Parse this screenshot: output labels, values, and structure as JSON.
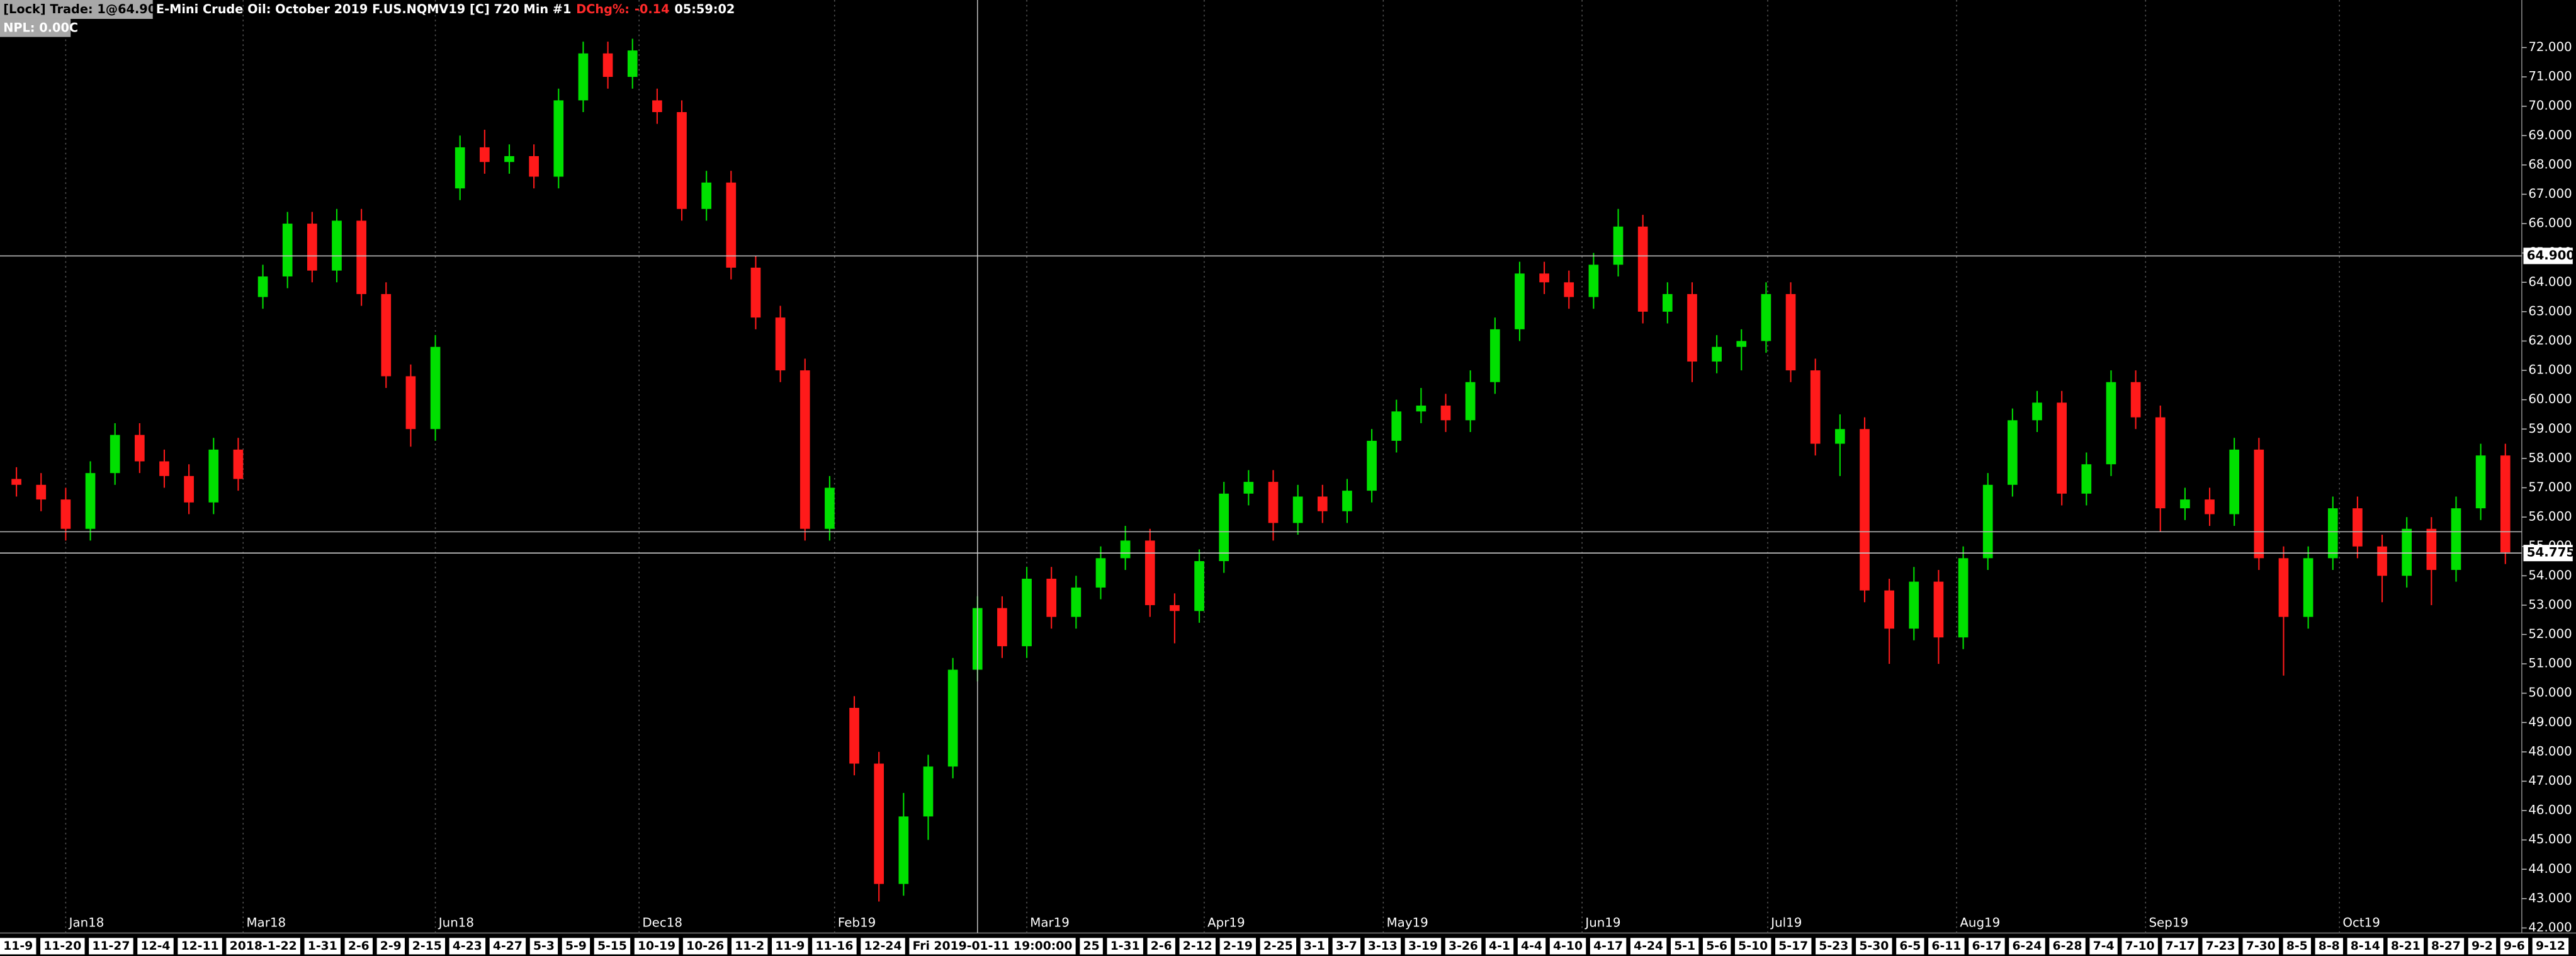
{
  "chart_data": {
    "type": "candlestick",
    "header": {
      "lock": "[Lock] Trade: 1@64.900",
      "instrument": "E-Mini Crude Oil: October 2019 F.US.NQMV19 [C]  720 Min   #1",
      "dchg_label": "DChg%:",
      "dchg_value": "-0.14",
      "time": "05:59:02",
      "npl": "NPL: 0.00C"
    },
    "up_color": "#00e000",
    "down_color": "#ff1a1a",
    "open": [
      57.3,
      57.1,
      56.6,
      55.6,
      57.5,
      58.8,
      57.9,
      57.4,
      56.5,
      58.3,
      63.5,
      64.2,
      66.0,
      64.4,
      66.1,
      63.6,
      60.8,
      59.0,
      67.2,
      68.6,
      68.1,
      68.3,
      67.6,
      70.2,
      71.8,
      71.0,
      70.2,
      69.8,
      66.5,
      67.4,
      64.5,
      62.8,
      61.0,
      55.6,
      49.5,
      47.6,
      43.5,
      45.8,
      47.5,
      50.8,
      52.9,
      51.6,
      53.9,
      52.6,
      53.6,
      54.6,
      55.2,
      53.0,
      52.8,
      54.5,
      56.8,
      57.2,
      55.8,
      56.7,
      56.2,
      56.9,
      58.6,
      59.6,
      59.8,
      59.3,
      60.6,
      62.4,
      64.3,
      64.0,
      63.5,
      64.6,
      65.9,
      63.0,
      63.6,
      61.3,
      61.8,
      62.0,
      63.6,
      61.0,
      58.5,
      59.0,
      53.5,
      52.2,
      53.8,
      51.9,
      54.6,
      57.1,
      59.3,
      59.9,
      56.8,
      57.8,
      60.6,
      59.4,
      56.3,
      56.6,
      56.1,
      58.3,
      54.6,
      52.6,
      54.6,
      56.3,
      55.0,
      54.0,
      55.6,
      54.2,
      56.3,
      58.1
    ],
    "high": [
      57.7,
      57.5,
      57.0,
      57.9,
      59.2,
      59.2,
      58.3,
      57.8,
      58.7,
      58.7,
      64.6,
      66.4,
      66.4,
      66.5,
      66.5,
      64.0,
      61.2,
      62.2,
      69.0,
      69.2,
      68.7,
      68.7,
      70.6,
      72.2,
      72.2,
      72.3,
      70.6,
      70.2,
      67.8,
      67.8,
      64.9,
      63.2,
      61.4,
      57.4,
      49.9,
      48.0,
      46.6,
      47.9,
      51.2,
      53.3,
      53.3,
      54.3,
      54.3,
      54.0,
      55.0,
      55.7,
      55.6,
      53.4,
      54.9,
      57.2,
      57.6,
      57.6,
      57.1,
      57.1,
      57.3,
      59.0,
      60.0,
      60.4,
      60.2,
      61.0,
      62.8,
      64.7,
      64.7,
      64.4,
      65.0,
      66.5,
      66.3,
      64.0,
      64.0,
      62.2,
      62.4,
      64.0,
      64.0,
      61.4,
      59.5,
      59.4,
      53.9,
      54.3,
      54.2,
      55.0,
      57.5,
      59.7,
      60.3,
      60.3,
      58.2,
      61.0,
      61.0,
      59.8,
      57.0,
      57.0,
      58.7,
      58.7,
      55.0,
      55.0,
      56.7,
      56.7,
      55.4,
      56.0,
      56.0,
      56.7,
      58.5,
      58.5
    ],
    "low": [
      56.7,
      56.2,
      55.2,
      55.2,
      57.1,
      57.5,
      57.0,
      56.1,
      56.1,
      56.9,
      63.1,
      63.8,
      64.0,
      64.0,
      63.2,
      60.4,
      58.4,
      58.6,
      66.8,
      67.7,
      67.7,
      67.2,
      67.2,
      69.8,
      70.6,
      70.6,
      69.4,
      66.1,
      66.1,
      64.1,
      62.4,
      60.6,
      55.2,
      55.2,
      47.2,
      42.9,
      43.1,
      45.0,
      47.1,
      50.4,
      51.2,
      51.2,
      52.2,
      52.2,
      53.2,
      54.2,
      52.6,
      51.7,
      52.4,
      54.1,
      56.4,
      55.2,
      55.4,
      55.8,
      55.8,
      56.5,
      58.2,
      59.2,
      58.9,
      58.9,
      60.2,
      62.0,
      63.6,
      63.1,
      63.1,
      64.2,
      62.6,
      62.6,
      60.6,
      60.9,
      61.0,
      61.6,
      60.6,
      58.1,
      57.4,
      53.1,
      51.0,
      51.8,
      51.0,
      51.5,
      54.2,
      56.7,
      58.9,
      56.4,
      56.4,
      57.4,
      59.0,
      55.5,
      55.9,
      55.7,
      55.7,
      54.2,
      50.6,
      52.2,
      54.2,
      54.6,
      53.1,
      53.6,
      53.0,
      53.8,
      55.9,
      54.4
    ],
    "close": [
      57.1,
      56.6,
      55.6,
      57.5,
      58.8,
      57.9,
      57.4,
      56.5,
      58.3,
      57.3,
      64.2,
      66.0,
      64.4,
      66.1,
      63.6,
      60.8,
      59.0,
      61.8,
      68.6,
      68.1,
      68.3,
      67.6,
      70.2,
      71.8,
      71.0,
      71.9,
      69.8,
      66.5,
      67.4,
      64.5,
      62.8,
      61.0,
      55.6,
      57.0,
      47.6,
      43.5,
      45.8,
      47.5,
      50.8,
      52.9,
      51.6,
      53.9,
      52.6,
      53.6,
      54.6,
      55.2,
      53.0,
      52.8,
      54.5,
      56.8,
      57.2,
      55.8,
      56.7,
      56.2,
      56.9,
      58.6,
      59.6,
      59.8,
      59.3,
      60.6,
      62.4,
      64.3,
      64.0,
      63.5,
      64.6,
      65.9,
      63.0,
      63.6,
      61.3,
      61.8,
      62.0,
      63.6,
      61.0,
      58.5,
      59.0,
      53.5,
      52.2,
      53.8,
      51.9,
      54.6,
      57.1,
      59.3,
      59.9,
      56.8,
      57.8,
      60.6,
      59.4,
      56.3,
      56.6,
      56.1,
      58.3,
      54.6,
      52.6,
      54.6,
      56.3,
      55.0,
      54.0,
      55.6,
      54.2,
      56.3,
      58.1,
      54.8
    ],
    "ylim": [
      41.94,
      73.62
    ],
    "yticks": [
      {
        "value": 42,
        "label": "42.000"
      },
      {
        "value": 43,
        "label": "43.000"
      },
      {
        "value": 44,
        "label": "44.000"
      },
      {
        "value": 45,
        "label": "45.000"
      },
      {
        "value": 46,
        "label": "46.000"
      },
      {
        "value": 47,
        "label": "47.000"
      },
      {
        "value": 48,
        "label": "48.000"
      },
      {
        "value": 49,
        "label": "49.000"
      },
      {
        "value": 50,
        "label": "50.000"
      },
      {
        "value": 51,
        "label": "51.000"
      },
      {
        "value": 52,
        "label": "52.000"
      },
      {
        "value": 53,
        "label": "53.000"
      },
      {
        "value": 54,
        "label": "54.000"
      },
      {
        "value": 55,
        "label": "55.000"
      },
      {
        "value": 56,
        "label": "56.000"
      },
      {
        "value": 57,
        "label": "57.000"
      },
      {
        "value": 58,
        "label": "58.000"
      },
      {
        "value": 59,
        "label": "59.000"
      },
      {
        "value": 60,
        "label": "60.000"
      },
      {
        "value": 61,
        "label": "61.000"
      },
      {
        "value": 62,
        "label": "62.000"
      },
      {
        "value": 63,
        "label": "63.000"
      },
      {
        "value": 64,
        "label": "64.000"
      },
      {
        "value": 65,
        "label": "65.000"
      },
      {
        "value": 66,
        "label": "66.000"
      },
      {
        "value": 67,
        "label": "67.000"
      },
      {
        "value": 68,
        "label": "68.000"
      },
      {
        "value": 69,
        "label": "69.000"
      },
      {
        "value": 70,
        "label": "70.000"
      },
      {
        "value": 71,
        "label": "71.000"
      },
      {
        "value": 72,
        "label": "72.000"
      }
    ],
    "price_lines": [
      {
        "value": 64.9,
        "label": "64.900"
      },
      {
        "value": 54.775,
        "label": "54.775"
      }
    ],
    "crosshair_level": 55.5,
    "month_labels": [
      "Jan18",
      "Mar18",
      "Jun18",
      "Dec18",
      "Feb19",
      "Mar19",
      "Apr19",
      "May19",
      "Jun19",
      "Jul19",
      "Aug19",
      "Sep19",
      "Oct19"
    ],
    "date_labels": [
      "11-9",
      "11-20",
      "11-27",
      "12-4",
      "12-11",
      "2018-1-22",
      "1-31",
      "2-6",
      "2-9",
      "2-15",
      "4-23",
      "4-27",
      "5-3",
      "5-9",
      "5-15",
      "10-19",
      "10-26",
      "11-2",
      "11-9",
      "11-16",
      "12-24",
      "Fri 2019-01-11 19:00:00",
      "25",
      "1-31",
      "2-6",
      "2-12",
      "2-19",
      "2-25",
      "3-1",
      "3-7",
      "3-13",
      "3-19",
      "3-26",
      "4-1",
      "4-4",
      "4-10",
      "4-17",
      "4-24",
      "5-1",
      "5-6",
      "5-10",
      "5-17",
      "5-23",
      "5-30",
      "6-5",
      "6-11",
      "6-17",
      "6-24",
      "6-28",
      "7-4",
      "7-10",
      "7-17",
      "7-23",
      "7-30",
      "8-5",
      "8-8",
      "8-14",
      "8-21",
      "8-27",
      "9-2",
      "9-6",
      "9-12"
    ]
  }
}
